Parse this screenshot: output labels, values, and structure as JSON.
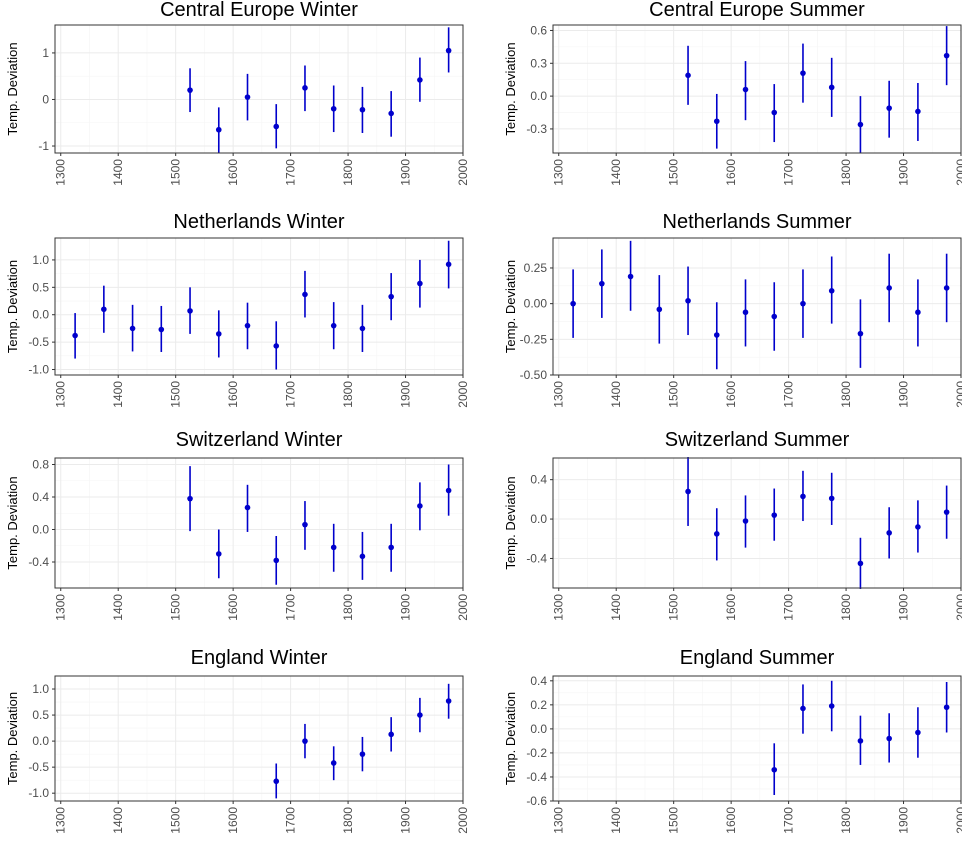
{
  "colors": {
    "point": "#0000cc",
    "errorbar": "#0000cc",
    "panel_border": "#333333",
    "grid_major": "#ebebeb",
    "grid_minor": "#f5f5f5",
    "tick_text": "#4d4d4d"
  },
  "chart_data": [
    {
      "type": "scatter",
      "title": "Central Europe Winter",
      "ylabel": "Temp. Deviation",
      "xlim": [
        1290,
        2000
      ],
      "ylim": [
        -1.15,
        1.6
      ],
      "xticks": [
        1300,
        1400,
        1500,
        1600,
        1700,
        1800,
        1900,
        2000
      ],
      "yticks": [
        -1,
        0,
        1
      ],
      "ytick_labels": [
        "-1",
        "0",
        "1"
      ],
      "grid": true,
      "points": [
        {
          "x": 1525,
          "y": 0.2,
          "lo": -0.27,
          "hi": 0.67
        },
        {
          "x": 1575,
          "y": -0.65,
          "lo": -1.15,
          "hi": -0.17
        },
        {
          "x": 1625,
          "y": 0.05,
          "lo": -0.45,
          "hi": 0.55
        },
        {
          "x": 1675,
          "y": -0.58,
          "lo": -1.05,
          "hi": -0.1
        },
        {
          "x": 1725,
          "y": 0.25,
          "lo": -0.25,
          "hi": 0.73
        },
        {
          "x": 1775,
          "y": -0.2,
          "lo": -0.7,
          "hi": 0.3
        },
        {
          "x": 1825,
          "y": -0.22,
          "lo": -0.72,
          "hi": 0.27
        },
        {
          "x": 1875,
          "y": -0.3,
          "lo": -0.8,
          "hi": 0.18
        },
        {
          "x": 1925,
          "y": 0.42,
          "lo": -0.05,
          "hi": 0.9
        },
        {
          "x": 1975,
          "y": 1.05,
          "lo": 0.58,
          "hi": 1.55
        }
      ]
    },
    {
      "type": "scatter",
      "title": "Central Europe Summer",
      "ylabel": "Temp. Deviation",
      "xlim": [
        1290,
        2000
      ],
      "ylim": [
        -0.52,
        0.65
      ],
      "xticks": [
        1300,
        1400,
        1500,
        1600,
        1700,
        1800,
        1900,
        2000
      ],
      "yticks": [
        -0.3,
        0,
        0.3,
        0.6
      ],
      "ytick_labels": [
        "-0.3",
        "0.0",
        "0.3",
        "0.6"
      ],
      "grid": true,
      "points": [
        {
          "x": 1525,
          "y": 0.19,
          "lo": -0.08,
          "hi": 0.46
        },
        {
          "x": 1575,
          "y": -0.23,
          "lo": -0.48,
          "hi": 0.02
        },
        {
          "x": 1625,
          "y": 0.06,
          "lo": -0.22,
          "hi": 0.32
        },
        {
          "x": 1675,
          "y": -0.15,
          "lo": -0.42,
          "hi": 0.11
        },
        {
          "x": 1725,
          "y": 0.21,
          "lo": -0.06,
          "hi": 0.48
        },
        {
          "x": 1775,
          "y": 0.08,
          "lo": -0.19,
          "hi": 0.35
        },
        {
          "x": 1825,
          "y": -0.26,
          "lo": -0.52,
          "hi": 0.0
        },
        {
          "x": 1875,
          "y": -0.11,
          "lo": -0.38,
          "hi": 0.14
        },
        {
          "x": 1925,
          "y": -0.14,
          "lo": -0.41,
          "hi": 0.12
        },
        {
          "x": 1975,
          "y": 0.37,
          "lo": 0.1,
          "hi": 0.64
        }
      ]
    },
    {
      "type": "scatter",
      "title": "Netherlands Winter",
      "ylabel": "Temp. Deviation",
      "xlim": [
        1290,
        2000
      ],
      "ylim": [
        -1.1,
        1.4
      ],
      "xticks": [
        1300,
        1400,
        1500,
        1600,
        1700,
        1800,
        1900,
        2000
      ],
      "yticks": [
        -1,
        -0.5,
        0,
        0.5,
        1
      ],
      "ytick_labels": [
        "-1.0",
        "-0.5",
        "0.0",
        "0.5",
        "1.0"
      ],
      "grid": true,
      "points": [
        {
          "x": 1325,
          "y": -0.38,
          "lo": -0.8,
          "hi": 0.03
        },
        {
          "x": 1375,
          "y": 0.1,
          "lo": -0.33,
          "hi": 0.53
        },
        {
          "x": 1425,
          "y": -0.25,
          "lo": -0.67,
          "hi": 0.18
        },
        {
          "x": 1475,
          "y": -0.27,
          "lo": -0.68,
          "hi": 0.16
        },
        {
          "x": 1525,
          "y": 0.07,
          "lo": -0.35,
          "hi": 0.5
        },
        {
          "x": 1575,
          "y": -0.35,
          "lo": -0.78,
          "hi": 0.08
        },
        {
          "x": 1625,
          "y": -0.2,
          "lo": -0.63,
          "hi": 0.22
        },
        {
          "x": 1675,
          "y": -0.57,
          "lo": -1.0,
          "hi": -0.12
        },
        {
          "x": 1725,
          "y": 0.37,
          "lo": -0.05,
          "hi": 0.8
        },
        {
          "x": 1775,
          "y": -0.2,
          "lo": -0.63,
          "hi": 0.23
        },
        {
          "x": 1825,
          "y": -0.25,
          "lo": -0.68,
          "hi": 0.18
        },
        {
          "x": 1875,
          "y": 0.33,
          "lo": -0.1,
          "hi": 0.76
        },
        {
          "x": 1925,
          "y": 0.57,
          "lo": 0.13,
          "hi": 1.0
        },
        {
          "x": 1975,
          "y": 0.92,
          "lo": 0.48,
          "hi": 1.35
        }
      ]
    },
    {
      "type": "scatter",
      "title": "Netherlands Summer",
      "ylabel": "Temp. Deviation",
      "xlim": [
        1290,
        2000
      ],
      "ylim": [
        -0.5,
        0.46
      ],
      "xticks": [
        1300,
        1400,
        1500,
        1600,
        1700,
        1800,
        1900,
        2000
      ],
      "yticks": [
        -0.5,
        -0.25,
        0,
        0.25
      ],
      "ytick_labels": [
        "-0.50",
        "-0.25",
        "0.00",
        "0.25"
      ],
      "grid": true,
      "points": [
        {
          "x": 1325,
          "y": 0.0,
          "lo": -0.24,
          "hi": 0.24
        },
        {
          "x": 1375,
          "y": 0.14,
          "lo": -0.1,
          "hi": 0.38
        },
        {
          "x": 1425,
          "y": 0.19,
          "lo": -0.05,
          "hi": 0.44
        },
        {
          "x": 1475,
          "y": -0.04,
          "lo": -0.28,
          "hi": 0.2
        },
        {
          "x": 1525,
          "y": 0.02,
          "lo": -0.22,
          "hi": 0.26
        },
        {
          "x": 1575,
          "y": -0.22,
          "lo": -0.46,
          "hi": 0.01
        },
        {
          "x": 1625,
          "y": -0.06,
          "lo": -0.3,
          "hi": 0.17
        },
        {
          "x": 1675,
          "y": -0.09,
          "lo": -0.33,
          "hi": 0.15
        },
        {
          "x": 1725,
          "y": 0.0,
          "lo": -0.24,
          "hi": 0.24
        },
        {
          "x": 1775,
          "y": 0.09,
          "lo": -0.14,
          "hi": 0.33
        },
        {
          "x": 1825,
          "y": -0.21,
          "lo": -0.45,
          "hi": 0.03
        },
        {
          "x": 1875,
          "y": 0.11,
          "lo": -0.13,
          "hi": 0.35
        },
        {
          "x": 1925,
          "y": -0.06,
          "lo": -0.3,
          "hi": 0.17
        },
        {
          "x": 1975,
          "y": 0.11,
          "lo": -0.13,
          "hi": 0.35
        }
      ]
    },
    {
      "type": "scatter",
      "title": "Switzerland Winter",
      "ylabel": "Temp. Deviation",
      "xlim": [
        1290,
        2000
      ],
      "ylim": [
        -0.72,
        0.88
      ],
      "xticks": [
        1300,
        1400,
        1500,
        1600,
        1700,
        1800,
        1900,
        2000
      ],
      "yticks": [
        -0.4,
        0,
        0.4,
        0.8
      ],
      "ytick_labels": [
        "-0.4",
        "0.0",
        "0.4",
        "0.8"
      ],
      "grid": true,
      "points": [
        {
          "x": 1525,
          "y": 0.38,
          "lo": -0.02,
          "hi": 0.78
        },
        {
          "x": 1575,
          "y": -0.3,
          "lo": -0.6,
          "hi": 0.0
        },
        {
          "x": 1625,
          "y": 0.27,
          "lo": -0.03,
          "hi": 0.55
        },
        {
          "x": 1675,
          "y": -0.38,
          "lo": -0.68,
          "hi": -0.08
        },
        {
          "x": 1725,
          "y": 0.06,
          "lo": -0.25,
          "hi": 0.35
        },
        {
          "x": 1775,
          "y": -0.22,
          "lo": -0.52,
          "hi": 0.07
        },
        {
          "x": 1825,
          "y": -0.33,
          "lo": -0.62,
          "hi": -0.03
        },
        {
          "x": 1875,
          "y": -0.22,
          "lo": -0.52,
          "hi": 0.07
        },
        {
          "x": 1925,
          "y": 0.29,
          "lo": -0.01,
          "hi": 0.58
        },
        {
          "x": 1975,
          "y": 0.48,
          "lo": 0.17,
          "hi": 0.8
        }
      ]
    },
    {
      "type": "scatter",
      "title": "Switzerland Summer",
      "ylabel": "Temp. Deviation",
      "xlim": [
        1290,
        2000
      ],
      "ylim": [
        -0.7,
        0.62
      ],
      "xticks": [
        1300,
        1400,
        1500,
        1600,
        1700,
        1800,
        1900,
        2000
      ],
      "yticks": [
        -0.4,
        0,
        0.4
      ],
      "ytick_labels": [
        "-0.4",
        "0.0",
        "0.4"
      ],
      "grid": true,
      "points": [
        {
          "x": 1525,
          "y": 0.28,
          "lo": -0.07,
          "hi": 0.63
        },
        {
          "x": 1575,
          "y": -0.15,
          "lo": -0.42,
          "hi": 0.11
        },
        {
          "x": 1625,
          "y": -0.02,
          "lo": -0.29,
          "hi": 0.24
        },
        {
          "x": 1675,
          "y": 0.04,
          "lo": -0.22,
          "hi": 0.31
        },
        {
          "x": 1725,
          "y": 0.23,
          "lo": -0.02,
          "hi": 0.49
        },
        {
          "x": 1775,
          "y": 0.21,
          "lo": -0.06,
          "hi": 0.47
        },
        {
          "x": 1825,
          "y": -0.45,
          "lo": -0.71,
          "hi": -0.19
        },
        {
          "x": 1875,
          "y": -0.14,
          "lo": -0.4,
          "hi": 0.12
        },
        {
          "x": 1925,
          "y": -0.08,
          "lo": -0.34,
          "hi": 0.19
        },
        {
          "x": 1975,
          "y": 0.07,
          "lo": -0.2,
          "hi": 0.34
        }
      ]
    },
    {
      "type": "scatter",
      "title": "England Winter",
      "ylabel": "Temp. Deviation",
      "xlim": [
        1290,
        2000
      ],
      "ylim": [
        -1.15,
        1.25
      ],
      "xticks": [
        1300,
        1400,
        1500,
        1600,
        1700,
        1800,
        1900,
        2000
      ],
      "yticks": [
        -1,
        -0.5,
        0,
        0.5,
        1
      ],
      "ytick_labels": [
        "-1.0",
        "-0.5",
        "0.0",
        "0.5",
        "1.0"
      ],
      "grid": true,
      "points": [
        {
          "x": 1675,
          "y": -0.77,
          "lo": -1.1,
          "hi": -0.43
        },
        {
          "x": 1725,
          "y": 0.0,
          "lo": -0.33,
          "hi": 0.33
        },
        {
          "x": 1775,
          "y": -0.42,
          "lo": -0.75,
          "hi": -0.1
        },
        {
          "x": 1825,
          "y": -0.25,
          "lo": -0.58,
          "hi": 0.08
        },
        {
          "x": 1875,
          "y": 0.13,
          "lo": -0.2,
          "hi": 0.46
        },
        {
          "x": 1925,
          "y": 0.5,
          "lo": 0.17,
          "hi": 0.83
        },
        {
          "x": 1975,
          "y": 0.77,
          "lo": 0.43,
          "hi": 1.1
        }
      ]
    },
    {
      "type": "scatter",
      "title": "England Summer",
      "ylabel": "Temp. Deviation",
      "xlim": [
        1290,
        2000
      ],
      "ylim": [
        -0.6,
        0.44
      ],
      "xticks": [
        1300,
        1400,
        1500,
        1600,
        1700,
        1800,
        1900,
        2000
      ],
      "yticks": [
        -0.6,
        -0.4,
        -0.2,
        0,
        0.2,
        0.4
      ],
      "ytick_labels": [
        "-0.6",
        "-0.4",
        "-0.2",
        "0.0",
        "0.2",
        "0.4"
      ],
      "grid": true,
      "points": [
        {
          "x": 1675,
          "y": -0.34,
          "lo": -0.55,
          "hi": -0.12
        },
        {
          "x": 1725,
          "y": 0.17,
          "lo": -0.04,
          "hi": 0.37
        },
        {
          "x": 1775,
          "y": 0.19,
          "lo": -0.02,
          "hi": 0.4
        },
        {
          "x": 1825,
          "y": -0.1,
          "lo": -0.3,
          "hi": 0.11
        },
        {
          "x": 1875,
          "y": -0.08,
          "lo": -0.28,
          "hi": 0.13
        },
        {
          "x": 1925,
          "y": -0.03,
          "lo": -0.24,
          "hi": 0.18
        },
        {
          "x": 1975,
          "y": 0.18,
          "lo": -0.03,
          "hi": 0.39
        }
      ]
    }
  ]
}
